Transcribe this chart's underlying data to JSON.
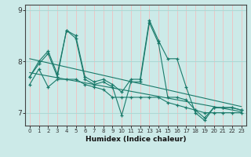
{
  "title": "",
  "xlabel": "Humidex (Indice chaleur)",
  "ylabel": "",
  "bg_color": "#cceae8",
  "line_color": "#1a7a6a",
  "grid_color_h": "#aed8d5",
  "grid_color_v": "#f0c0c0",
  "x_values": [
    0,
    1,
    2,
    3,
    4,
    5,
    6,
    7,
    8,
    9,
    10,
    11,
    12,
    13,
    14,
    15,
    16,
    17,
    18,
    19,
    20,
    21,
    22,
    23
  ],
  "series1": [
    7.7,
    7.95,
    8.15,
    7.7,
    8.6,
    8.45,
    7.65,
    7.55,
    7.6,
    7.5,
    6.95,
    7.6,
    7.6,
    8.75,
    8.35,
    7.3,
    7.3,
    7.25,
    7.05,
    6.9,
    7.1,
    7.1,
    7.1,
    7.05
  ],
  "series2": [
    7.55,
    7.85,
    7.5,
    7.65,
    7.65,
    7.65,
    7.55,
    7.5,
    7.45,
    7.3,
    7.3,
    7.3,
    7.3,
    7.3,
    7.3,
    7.2,
    7.15,
    7.1,
    7.05,
    7.0,
    7.0,
    7.0,
    7.0,
    7.0
  ],
  "series3": [
    7.7,
    8.0,
    8.2,
    7.75,
    8.6,
    8.5,
    7.7,
    7.6,
    7.65,
    7.55,
    7.4,
    7.65,
    7.65,
    8.8,
    8.4,
    8.05,
    8.05,
    7.5,
    7.0,
    6.85,
    7.1,
    7.1,
    7.1,
    7.05
  ],
  "trend1_start": 8.05,
  "trend1_end": 7.12,
  "trend2_start": 7.78,
  "trend2_end": 7.02,
  "ylim": [
    6.75,
    9.1
  ],
  "xlim": [
    -0.5,
    23.5
  ],
  "yticks": [
    7,
    8,
    9
  ],
  "xticks": [
    0,
    1,
    2,
    3,
    4,
    5,
    6,
    7,
    8,
    9,
    10,
    11,
    12,
    13,
    14,
    15,
    16,
    17,
    18,
    19,
    20,
    21,
    22,
    23
  ]
}
